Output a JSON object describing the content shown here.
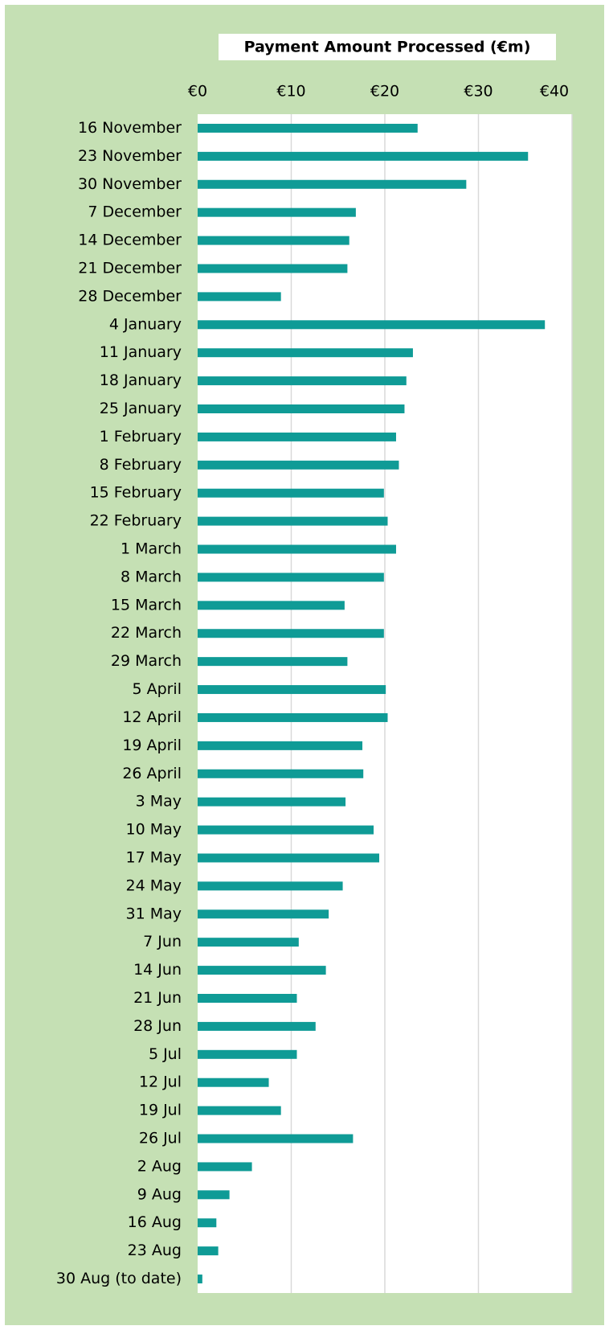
{
  "chart_data": {
    "type": "bar",
    "orientation": "horizontal",
    "title": "Payment Amount Processed (€m)",
    "categories": [
      "16 November",
      "23 November",
      "30 November",
      "7 December",
      "14 December",
      "21 December",
      "28 December",
      "4 January",
      "11 January",
      "18 January",
      "25 January",
      "1 February",
      "8 February",
      "15 February",
      "22 February",
      "1 March",
      "8 March",
      "15 March",
      "22 March",
      "29 March",
      "5 April",
      "12 April",
      "19 April",
      "26 April",
      "3 May",
      "10 May",
      "17 May",
      "24 May",
      "31 May",
      "7 Jun",
      "14 Jun",
      "21 Jun",
      "28 Jun",
      "5 Jul",
      "12 Jul",
      "19 Jul",
      "26 Jul",
      "2 Aug",
      "9 Aug",
      "16 Aug",
      "23 Aug",
      "30 Aug (to date)"
    ],
    "values": [
      23.5,
      35.3,
      28.7,
      16.9,
      16.2,
      16.0,
      8.9,
      37.1,
      23.0,
      22.3,
      22.1,
      21.2,
      21.5,
      19.9,
      20.3,
      21.2,
      19.9,
      15.7,
      19.9,
      16.0,
      20.1,
      20.3,
      17.6,
      17.7,
      15.8,
      18.8,
      19.4,
      15.5,
      14.0,
      10.8,
      13.7,
      10.6,
      12.6,
      10.6,
      7.6,
      8.9,
      16.6,
      5.8,
      3.4,
      2.0,
      2.2,
      0.5
    ],
    "color": "#0f9b96",
    "xlim": [
      0,
      40
    ],
    "xticks": [
      {
        "value": 0,
        "label": "€0"
      },
      {
        "value": 10,
        "label": "€10"
      },
      {
        "value": 20,
        "label": "€20"
      },
      {
        "value": 30,
        "label": "€30"
      },
      {
        "value": 40,
        "label": "€40"
      }
    ],
    "grid": true
  }
}
